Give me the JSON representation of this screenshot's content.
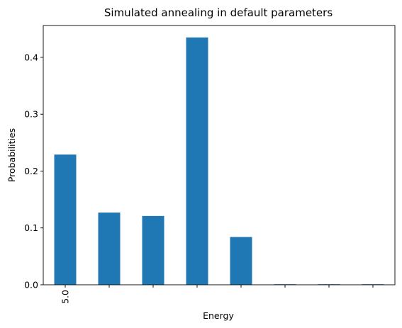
{
  "chart_data": {
    "type": "bar",
    "title": "Simulated annealing in default parameters",
    "xlabel": "Energy",
    "ylabel": "Probabilities",
    "categories": [
      "5.0",
      "",
      "",
      "",
      "",
      "",
      "",
      ""
    ],
    "values": [
      0.229,
      0.127,
      0.121,
      0.435,
      0.084,
      0.001,
      0.001,
      0.001
    ],
    "ylim": [
      0,
      0.456
    ],
    "yticks": [
      0.0,
      0.1,
      0.2,
      0.3,
      0.4
    ],
    "ytick_labels": [
      "0.0",
      "0.1",
      "0.2",
      "0.3",
      "0.4"
    ],
    "bar_color": "#1f77b4",
    "grid": false,
    "legend": "none"
  }
}
